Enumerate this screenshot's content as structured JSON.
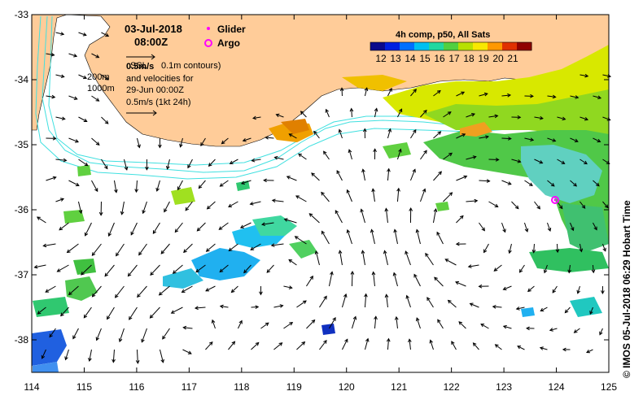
{
  "map": {
    "date": "03-Jul-2018",
    "time": "08:00Z",
    "legend": {
      "glider": "Glider",
      "argo": "Argo"
    },
    "contour_note": "0.1m contours)",
    "contour_prefix": "SSL",
    "velocity_note": "and velocities for",
    "velocity_date": "29-Jun 00:00Z",
    "scale_top": "0.5m/s",
    "scale_bottom": "0.5m/s (1kt 24h)",
    "depth_200": "200m",
    "depth_1000": "1000m",
    "colorbar": {
      "title": "4h comp, p50, All Sats",
      "labels": [
        "12",
        "13",
        "14",
        "15",
        "16",
        "17",
        "18",
        "19",
        "20",
        "21"
      ],
      "colors": [
        "#0a0a8c",
        "#0020e0",
        "#0070ff",
        "#00c0f0",
        "#20d8a0",
        "#50d040",
        "#b8e000",
        "#f8e800",
        "#ff9800",
        "#e03000",
        "#900000"
      ]
    },
    "lat_labels": [
      "-33",
      "-34",
      "-35",
      "-36",
      "-37",
      "-38"
    ],
    "lon_labels": [
      "114",
      "115",
      "116",
      "117",
      "118",
      "119",
      "120",
      "121",
      "122",
      "123",
      "124",
      "125"
    ],
    "credit": "IMOS 05-Jul-2018 06:29 Hobart Time",
    "copyright": "©",
    "colors": {
      "land": "#ffcc99",
      "sea": "#ffffff",
      "glider": "#ff00ff",
      "argo": "#ff00ff"
    }
  }
}
